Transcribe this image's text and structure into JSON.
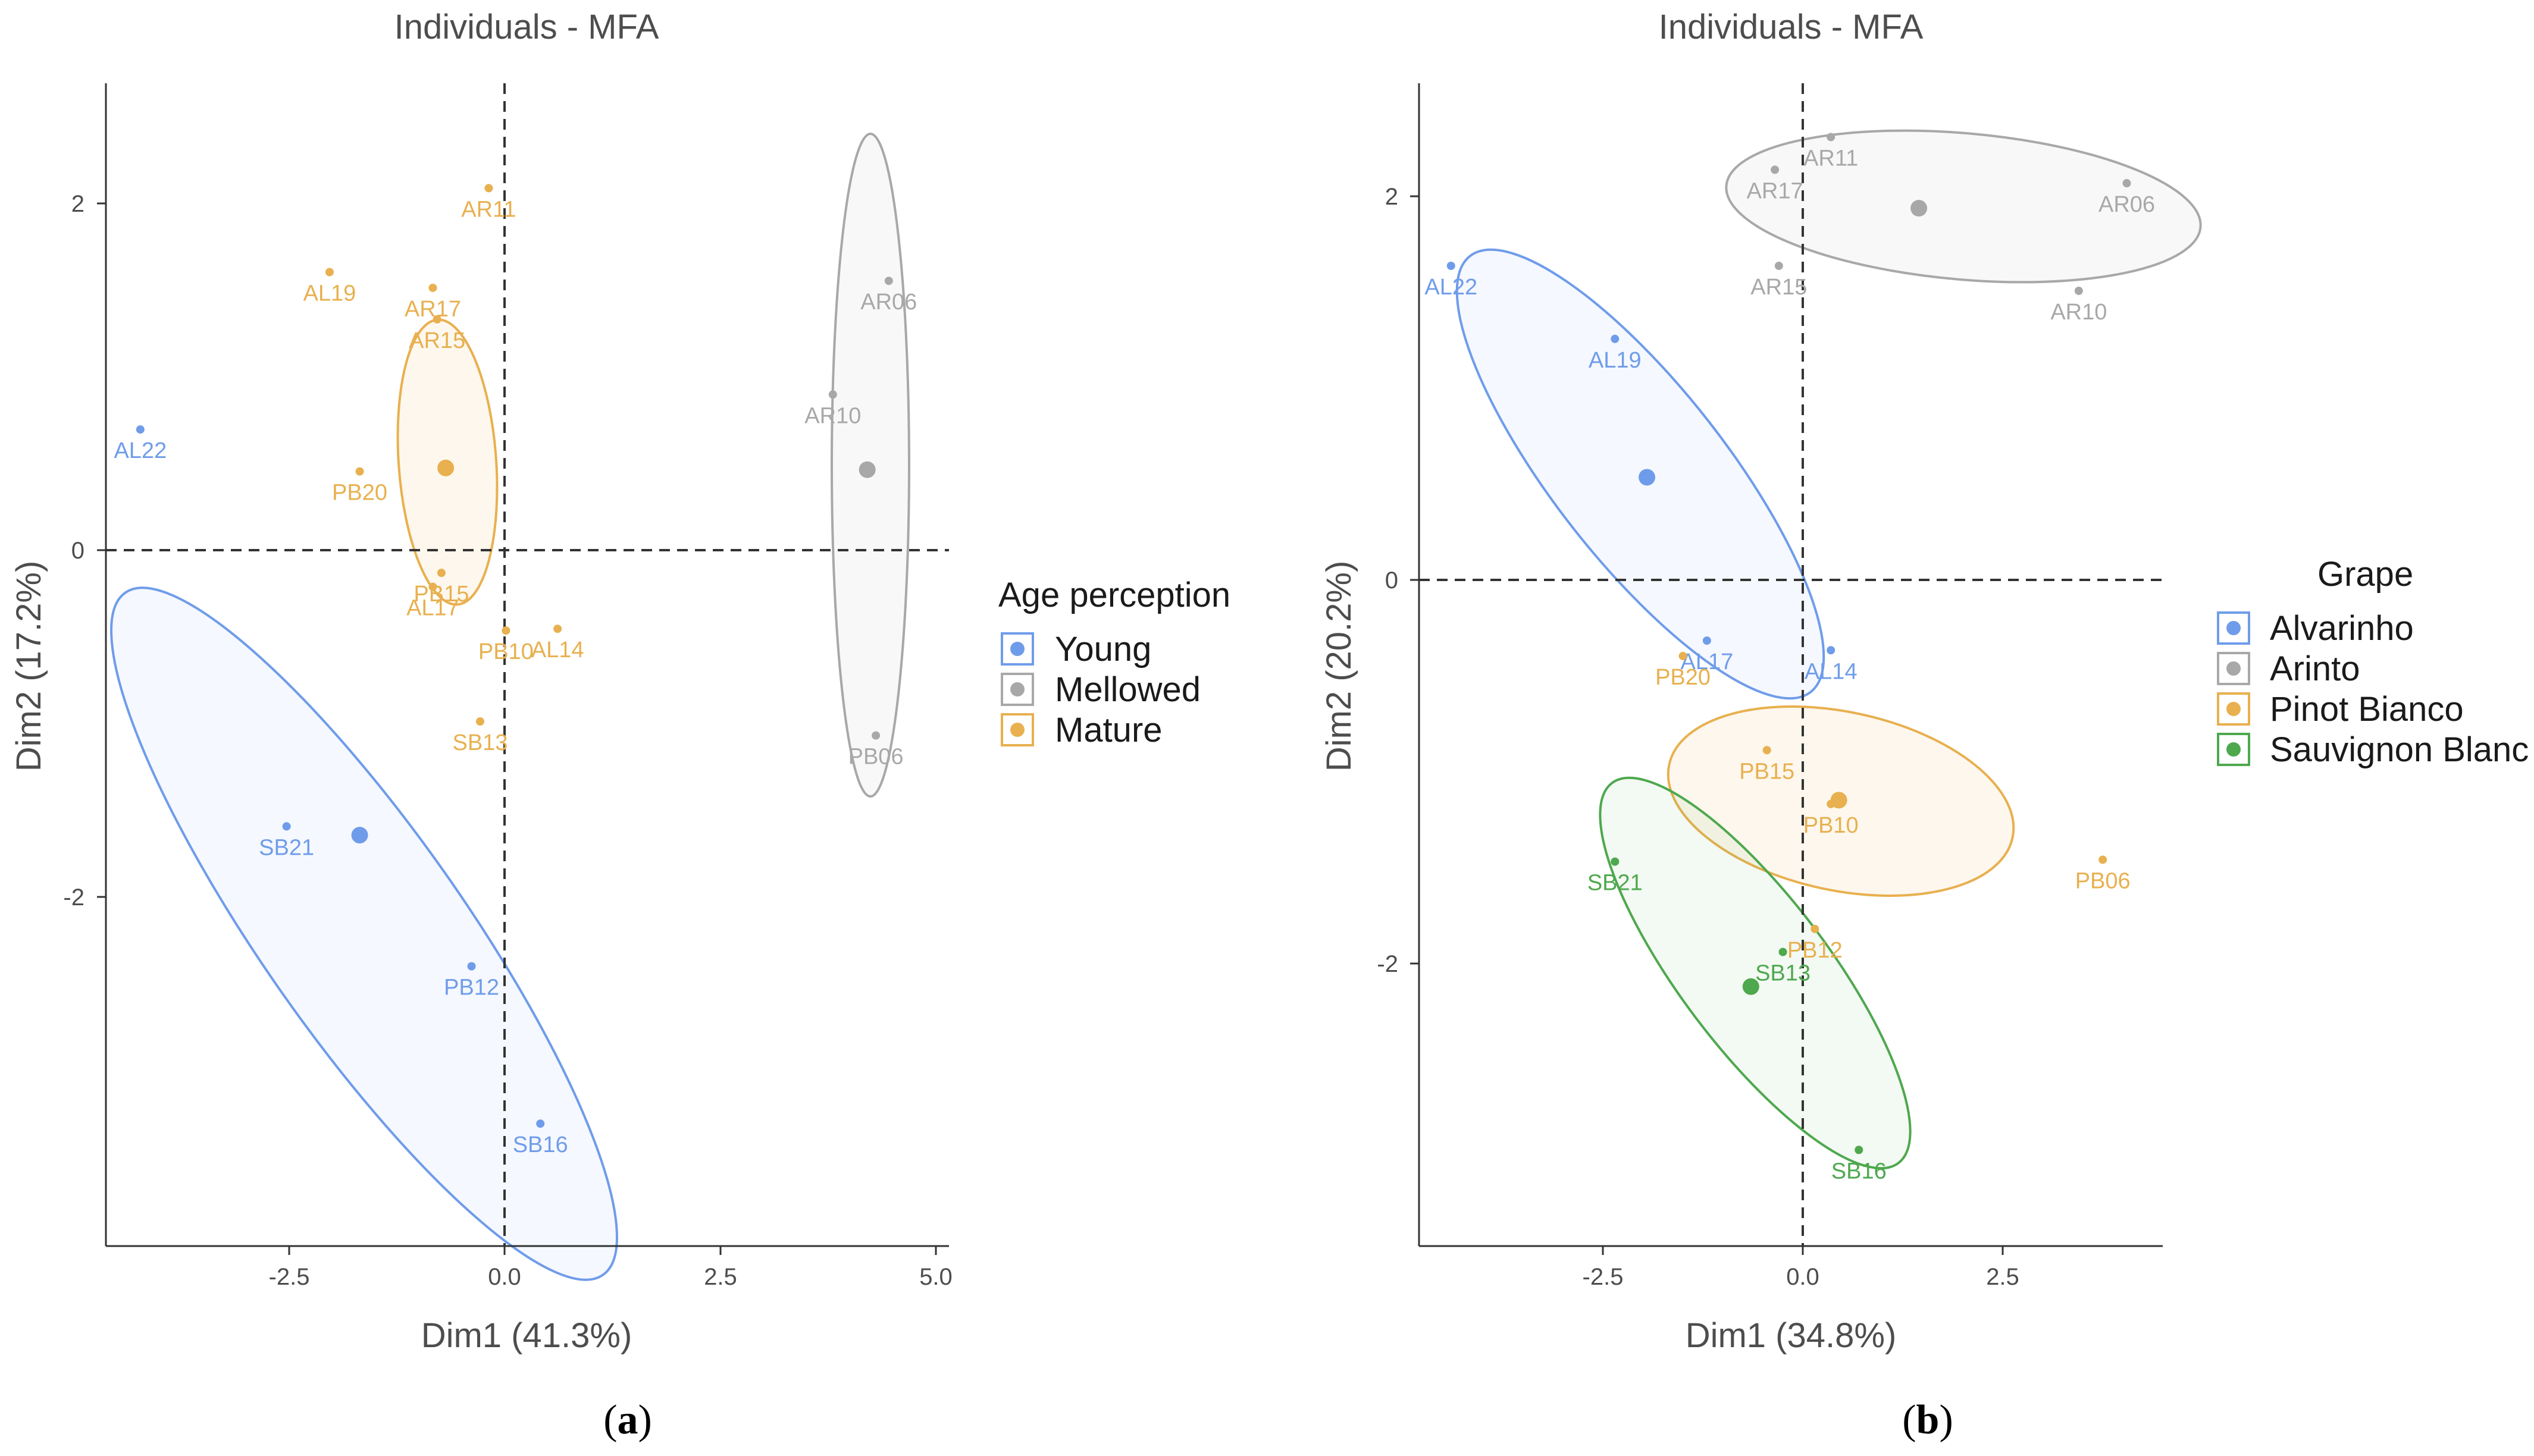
{
  "panels": [
    {
      "caption": "a",
      "legend_title": "Age perception",
      "groups": [
        {
          "name": "Young",
          "color": "#6f9cea"
        },
        {
          "name": "Mellowed",
          "color": "#a8a8a8"
        },
        {
          "name": "Mature",
          "color": "#e8b04f"
        }
      ],
      "chart_data": {
        "type": "scatter",
        "title": "Individuals - MFA",
        "xlabel": "Dim1 (41.3%)",
        "ylabel": "Dim2 (17.2%)",
        "xlim": [
          -4.6,
          5.2
        ],
        "ylim": [
          -3.95,
          2.7
        ],
        "xticks": [
          -2.5,
          0.0,
          2.5,
          5.0
        ],
        "xtick_labels": [
          "-2.5",
          "0.0",
          "2.5",
          "5.0"
        ],
        "yticks": [
          -2,
          0,
          2
        ],
        "ytick_labels": [
          "-2",
          "0",
          "2"
        ],
        "grid": false,
        "legend_position": "right",
        "points": [
          {
            "label": "AL22",
            "x": -4.2,
            "y": 0.72,
            "group": "Young"
          },
          {
            "label": "SB21",
            "x": -2.5,
            "y": -1.55,
            "group": "Young"
          },
          {
            "label": "PB12",
            "x": -0.35,
            "y": -2.35,
            "group": "Young"
          },
          {
            "label": "SB16",
            "x": 0.45,
            "y": -3.25,
            "group": "Young"
          },
          {
            "label": "AR06",
            "x": 4.5,
            "y": 1.57,
            "group": "Mellowed"
          },
          {
            "label": "AR10",
            "x": 3.85,
            "y": 0.92,
            "group": "Mellowed"
          },
          {
            "label": "PB06",
            "x": 4.35,
            "y": -1.03,
            "group": "Mellowed"
          },
          {
            "label": "AR11",
            "x": -0.15,
            "y": 2.1,
            "group": "Mature"
          },
          {
            "label": "AL19",
            "x": -2.0,
            "y": 1.62,
            "group": "Mature"
          },
          {
            "label": "AR17",
            "x": -0.8,
            "y": 1.53,
            "group": "Mature"
          },
          {
            "label": "AR15",
            "x": -0.75,
            "y": 1.35,
            "group": "Mature"
          },
          {
            "label": "PB20",
            "x": -1.65,
            "y": 0.48,
            "group": "Mature"
          },
          {
            "label": "PB15",
            "x": -0.7,
            "y": -0.1,
            "group": "Mature"
          },
          {
            "label": "AL17",
            "x": -0.8,
            "y": -0.18,
            "group": "Mature"
          },
          {
            "label": "PB10",
            "x": 0.05,
            "y": -0.43,
            "group": "Mature"
          },
          {
            "label": "AL14",
            "x": 0.65,
            "y": -0.42,
            "group": "Mature"
          },
          {
            "label": "SB13",
            "x": -0.25,
            "y": -0.95,
            "group": "Mature"
          }
        ],
        "centroids": [
          {
            "group": "Young",
            "x": -1.65,
            "y": -1.6
          },
          {
            "group": "Mellowed",
            "x": 4.25,
            "y": 0.49
          },
          {
            "group": "Mature",
            "x": -0.65,
            "y": 0.5
          }
        ]
      }
    },
    {
      "caption": "b",
      "legend_title": "Grape",
      "groups": [
        {
          "name": "Alvarinho",
          "color": "#6f9cea"
        },
        {
          "name": "Arinto",
          "color": "#a8a8a8"
        },
        {
          "name": "Pinot Bianco",
          "color": "#e8b04f"
        },
        {
          "name": "Sauvignon Blanc",
          "color": "#4ea84e"
        }
      ],
      "chart_data": {
        "type": "scatter",
        "title": "Individuals - MFA",
        "xlabel": "Dim1 (34.8%)",
        "ylabel": "Dim2 (20.2%)",
        "xlim": [
          -4.8,
          4.5
        ],
        "ylim": [
          -3.45,
          2.6
        ],
        "xticks": [
          -2.5,
          0.0,
          2.5
        ],
        "xtick_labels": [
          "-2.5",
          "0.0",
          "2.5"
        ],
        "yticks": [
          -2,
          0,
          2
        ],
        "ytick_labels": [
          "-2",
          "0",
          "2"
        ],
        "grid": false,
        "legend_position": "right",
        "points": [
          {
            "label": "AL22",
            "x": -4.4,
            "y": 1.65,
            "group": "Alvarinho"
          },
          {
            "label": "AL19",
            "x": -2.35,
            "y": 1.27,
            "group": "Alvarinho"
          },
          {
            "label": "AL17",
            "x": -1.2,
            "y": -0.3,
            "group": "Alvarinho"
          },
          {
            "label": "AL14",
            "x": 0.35,
            "y": -0.35,
            "group": "Alvarinho"
          },
          {
            "label": "AR11",
            "x": 0.35,
            "y": 2.32,
            "group": "Arinto"
          },
          {
            "label": "AR17",
            "x": -0.35,
            "y": 2.15,
            "group": "Arinto"
          },
          {
            "label": "AR06",
            "x": 4.05,
            "y": 2.08,
            "group": "Arinto"
          },
          {
            "label": "AR15",
            "x": -0.3,
            "y": 1.65,
            "group": "Arinto"
          },
          {
            "label": "AR10",
            "x": 3.45,
            "y": 1.52,
            "group": "Arinto"
          },
          {
            "label": "PB20",
            "x": -1.5,
            "y": -0.38,
            "group": "Pinot Bianco"
          },
          {
            "label": "PB15",
            "x": -0.45,
            "y": -0.87,
            "group": "Pinot Bianco"
          },
          {
            "label": "PB10",
            "x": 0.35,
            "y": -1.15,
            "group": "Pinot Bianco"
          },
          {
            "label": "PB12",
            "x": 0.15,
            "y": -1.8,
            "group": "Pinot Bianco"
          },
          {
            "label": "PB06",
            "x": 3.75,
            "y": -1.44,
            "group": "Pinot Bianco"
          },
          {
            "label": "SB21",
            "x": -2.35,
            "y": -1.45,
            "group": "Sauvignon Blanc"
          },
          {
            "label": "SB13",
            "x": -0.25,
            "y": -1.92,
            "group": "Sauvignon Blanc"
          },
          {
            "label": "SB16",
            "x": 0.7,
            "y": -2.95,
            "group": "Sauvignon Blanc"
          }
        ],
        "centroids": [
          {
            "group": "Alvarinho",
            "x": -1.95,
            "y": 0.55
          },
          {
            "group": "Arinto",
            "x": 1.45,
            "y": 1.95
          },
          {
            "group": "Pinot Bianco",
            "x": 0.45,
            "y": -1.13
          },
          {
            "group": "Sauvignon Blanc",
            "x": -0.65,
            "y": -2.1
          }
        ]
      }
    }
  ]
}
